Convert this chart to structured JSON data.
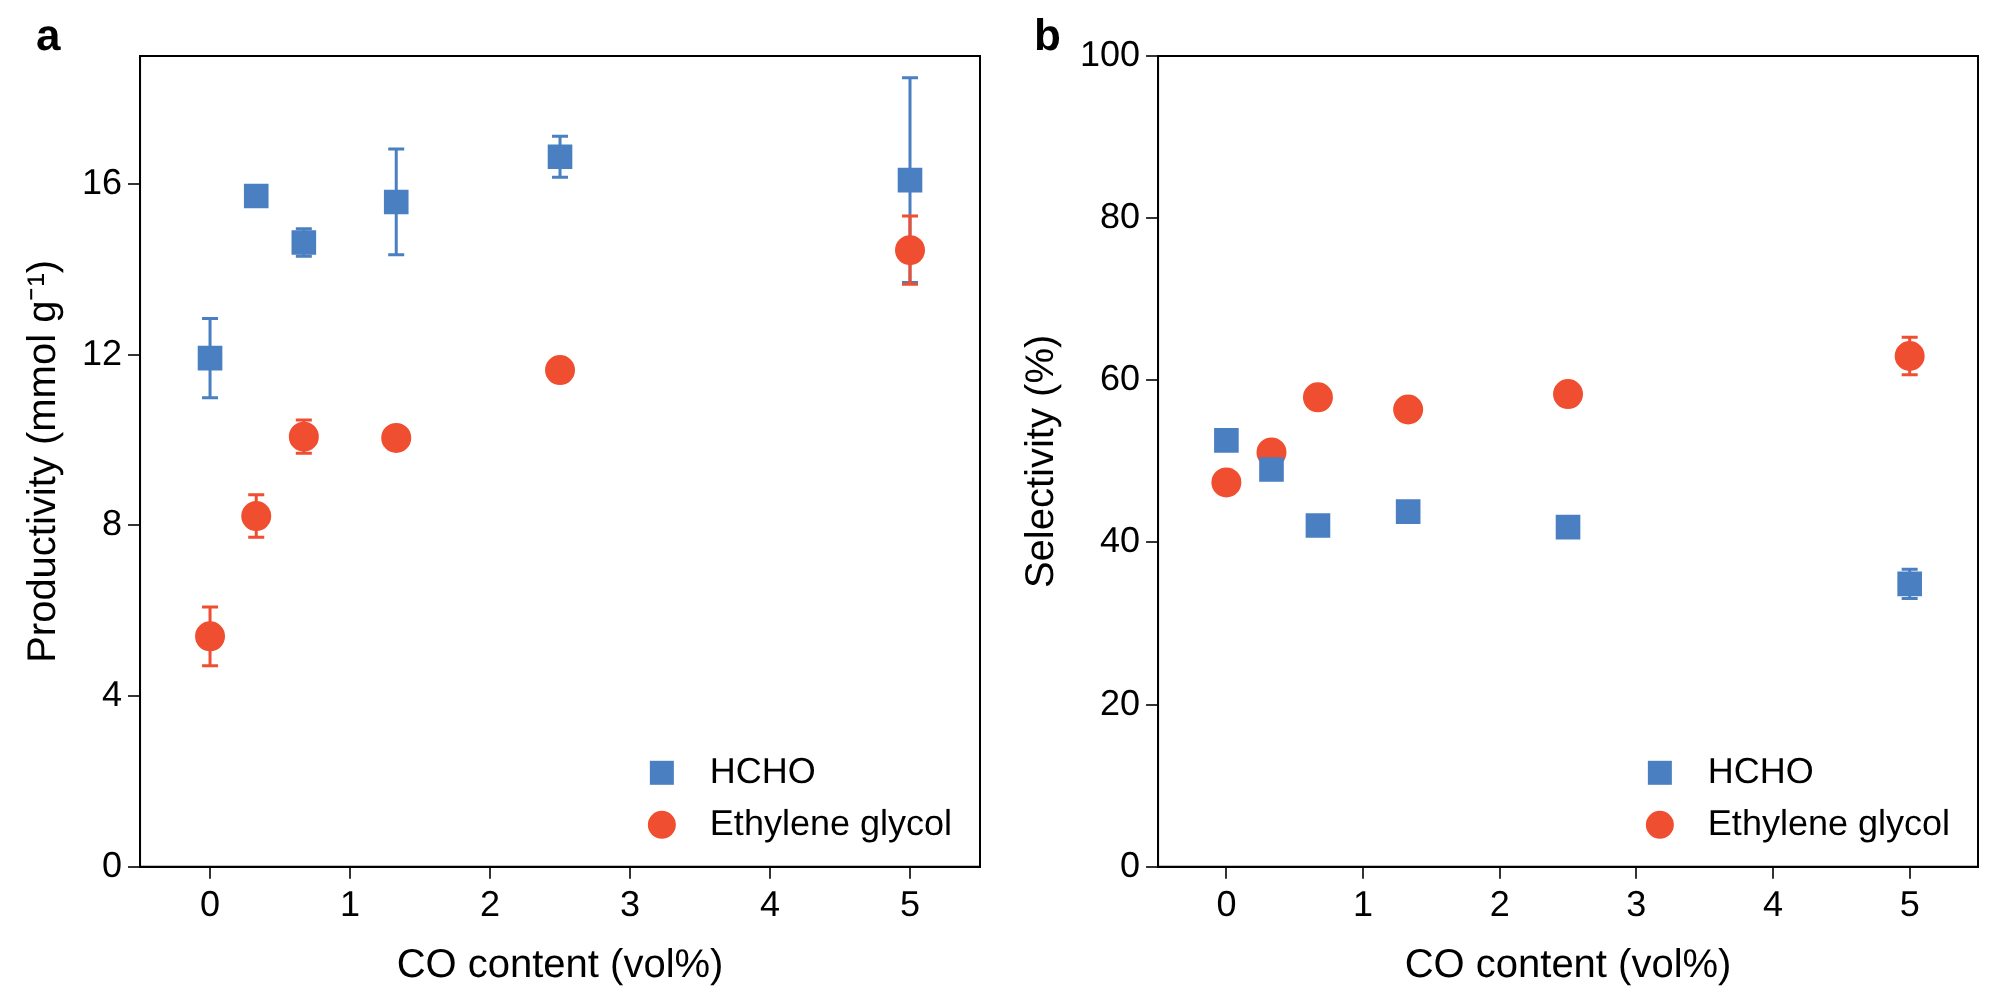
{
  "chart_data": [
    {
      "type": "scatter",
      "title": "a",
      "xlabel": "CO content (vol%)",
      "ylabel": "Productivity (mmol g⁻¹)",
      "xlim": [
        -0.5,
        5.5
      ],
      "xticks": [
        0,
        1,
        2,
        3,
        4,
        5
      ],
      "ylim": [
        0,
        19
      ],
      "yticks": [
        0,
        4,
        8,
        12,
        16
      ],
      "grid": false,
      "legend": "bottom right",
      "series": [
        {
          "name": "HCHO",
          "color": "#4a7fc1",
          "marker": "square",
          "x": [
            0,
            0.33,
            0.67,
            1.33,
            2.5,
            5
          ],
          "values": [
            11.92,
            15.72,
            14.63,
            15.58,
            16.64,
            16.09
          ],
          "errors": [
            0.93,
            null,
            0.32,
            1.24,
            0.48,
            2.4
          ]
        },
        {
          "name": "Ethylene glycol",
          "color": "#f04e30",
          "marker": "circle",
          "x": [
            0,
            0.33,
            0.67,
            1.33,
            2.5,
            5
          ],
          "values": [
            5.4,
            8.22,
            10.08,
            10.05,
            11.64,
            14.45
          ],
          "errors": [
            0.69,
            0.5,
            0.39,
            0.25,
            null,
            0.8
          ]
        }
      ]
    },
    {
      "type": "scatter",
      "title": "b",
      "xlabel": "CO content (vol%)",
      "ylabel": "Selectivity (%)",
      "xlim": [
        -0.5,
        5.5
      ],
      "xticks": [
        0,
        1,
        2,
        3,
        4,
        5
      ],
      "ylim": [
        0,
        100
      ],
      "yticks": [
        0,
        20,
        40,
        60,
        80,
        100
      ],
      "grid": false,
      "legend": "bottom right",
      "series": [
        {
          "name": "HCHO",
          "color": "#4a7fc1",
          "marker": "square",
          "x": [
            0,
            0.33,
            0.67,
            1.33,
            2.5,
            5
          ],
          "values": [
            52.6,
            49,
            42.1,
            43.8,
            41.9,
            34.9
          ],
          "errors": [
            null,
            null,
            null,
            null,
            null,
            1.8
          ]
        },
        {
          "name": "Ethylene glycol",
          "color": "#f04e30",
          "marker": "circle",
          "x": [
            0,
            0.33,
            0.67,
            1.33,
            2.5,
            5
          ],
          "values": [
            47.4,
            51.1,
            57.9,
            56.4,
            58.3,
            63
          ],
          "errors": [
            null,
            null,
            null,
            null,
            null,
            2.3
          ]
        }
      ]
    }
  ]
}
